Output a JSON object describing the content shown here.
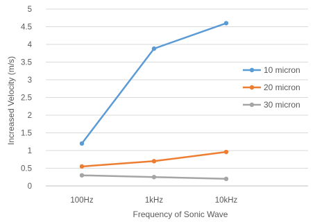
{
  "chart_data": {
    "type": "line",
    "title": "",
    "xlabel": "Frequency of Sonic Wave",
    "ylabel": "Increased Velocity (m/s)",
    "categories": [
      "100Hz",
      "1kHz",
      "10kHz"
    ],
    "ylim": [
      0,
      5
    ],
    "ytick_step": 0.5,
    "ytick_labels": [
      "0",
      "0.5",
      "1",
      "1.5",
      "2",
      "2.5",
      "3",
      "3.5",
      "4",
      "4.5",
      "5"
    ],
    "grid": true,
    "legend_position": "right",
    "series": [
      {
        "name": "10 micron",
        "color": "#5B9BD5",
        "values": [
          1.2,
          3.88,
          4.6
        ]
      },
      {
        "name": "20 micron",
        "color": "#ED7D31",
        "values": [
          0.55,
          0.7,
          0.96
        ]
      },
      {
        "name": "30 micron",
        "color": "#A5A5A5",
        "values": [
          0.3,
          0.25,
          0.2
        ]
      }
    ]
  }
}
